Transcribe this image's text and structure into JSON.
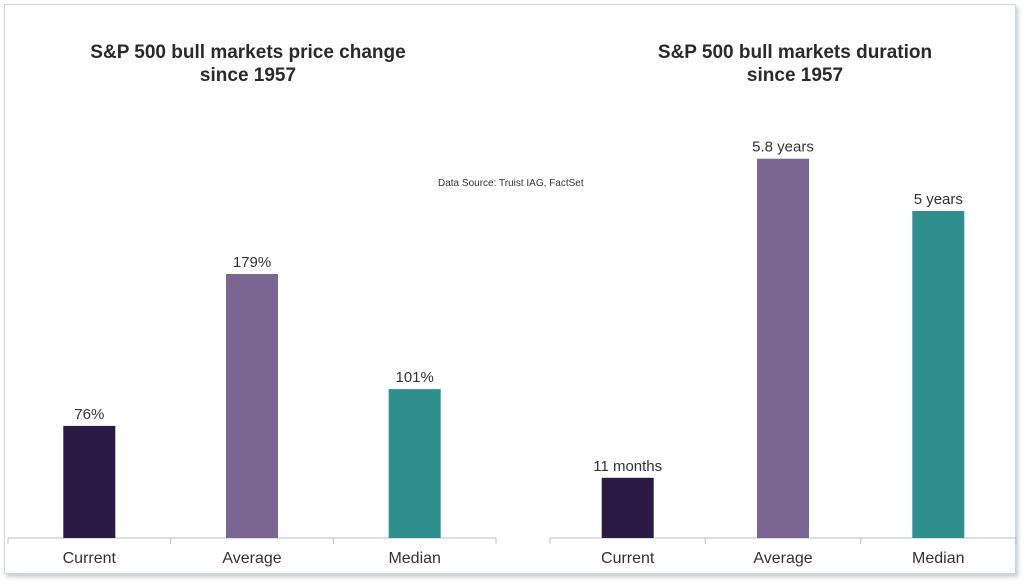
{
  "source_note": "Data Source: Truist IAG, FactSet",
  "colors": {
    "current": "#2a1a45",
    "average": "#7a6691",
    "median": "#2f8f8e",
    "axis": "#bfbfbf"
  },
  "chart_data": [
    {
      "type": "bar",
      "title_lines": [
        "S&P 500 bull markets price change",
        "since 1957"
      ],
      "categories": [
        "Current",
        "Average",
        "Median"
      ],
      "values": [
        76,
        179,
        101
      ],
      "data_labels": [
        "76%",
        "179%",
        "101%"
      ],
      "unit": "%",
      "ylim": [
        0,
        200
      ],
      "grid": false,
      "legend": "none"
    },
    {
      "type": "bar",
      "title_lines": [
        "S&P 500 bull markets duration",
        "since 1957"
      ],
      "categories": [
        "Current",
        "Average",
        "Median"
      ],
      "values": [
        0.92,
        5.8,
        5
      ],
      "data_labels": [
        "11 months",
        "5.8 years",
        "5 years"
      ],
      "unit": "years",
      "ylim": [
        0,
        6.44
      ],
      "grid": false,
      "legend": "none"
    }
  ]
}
